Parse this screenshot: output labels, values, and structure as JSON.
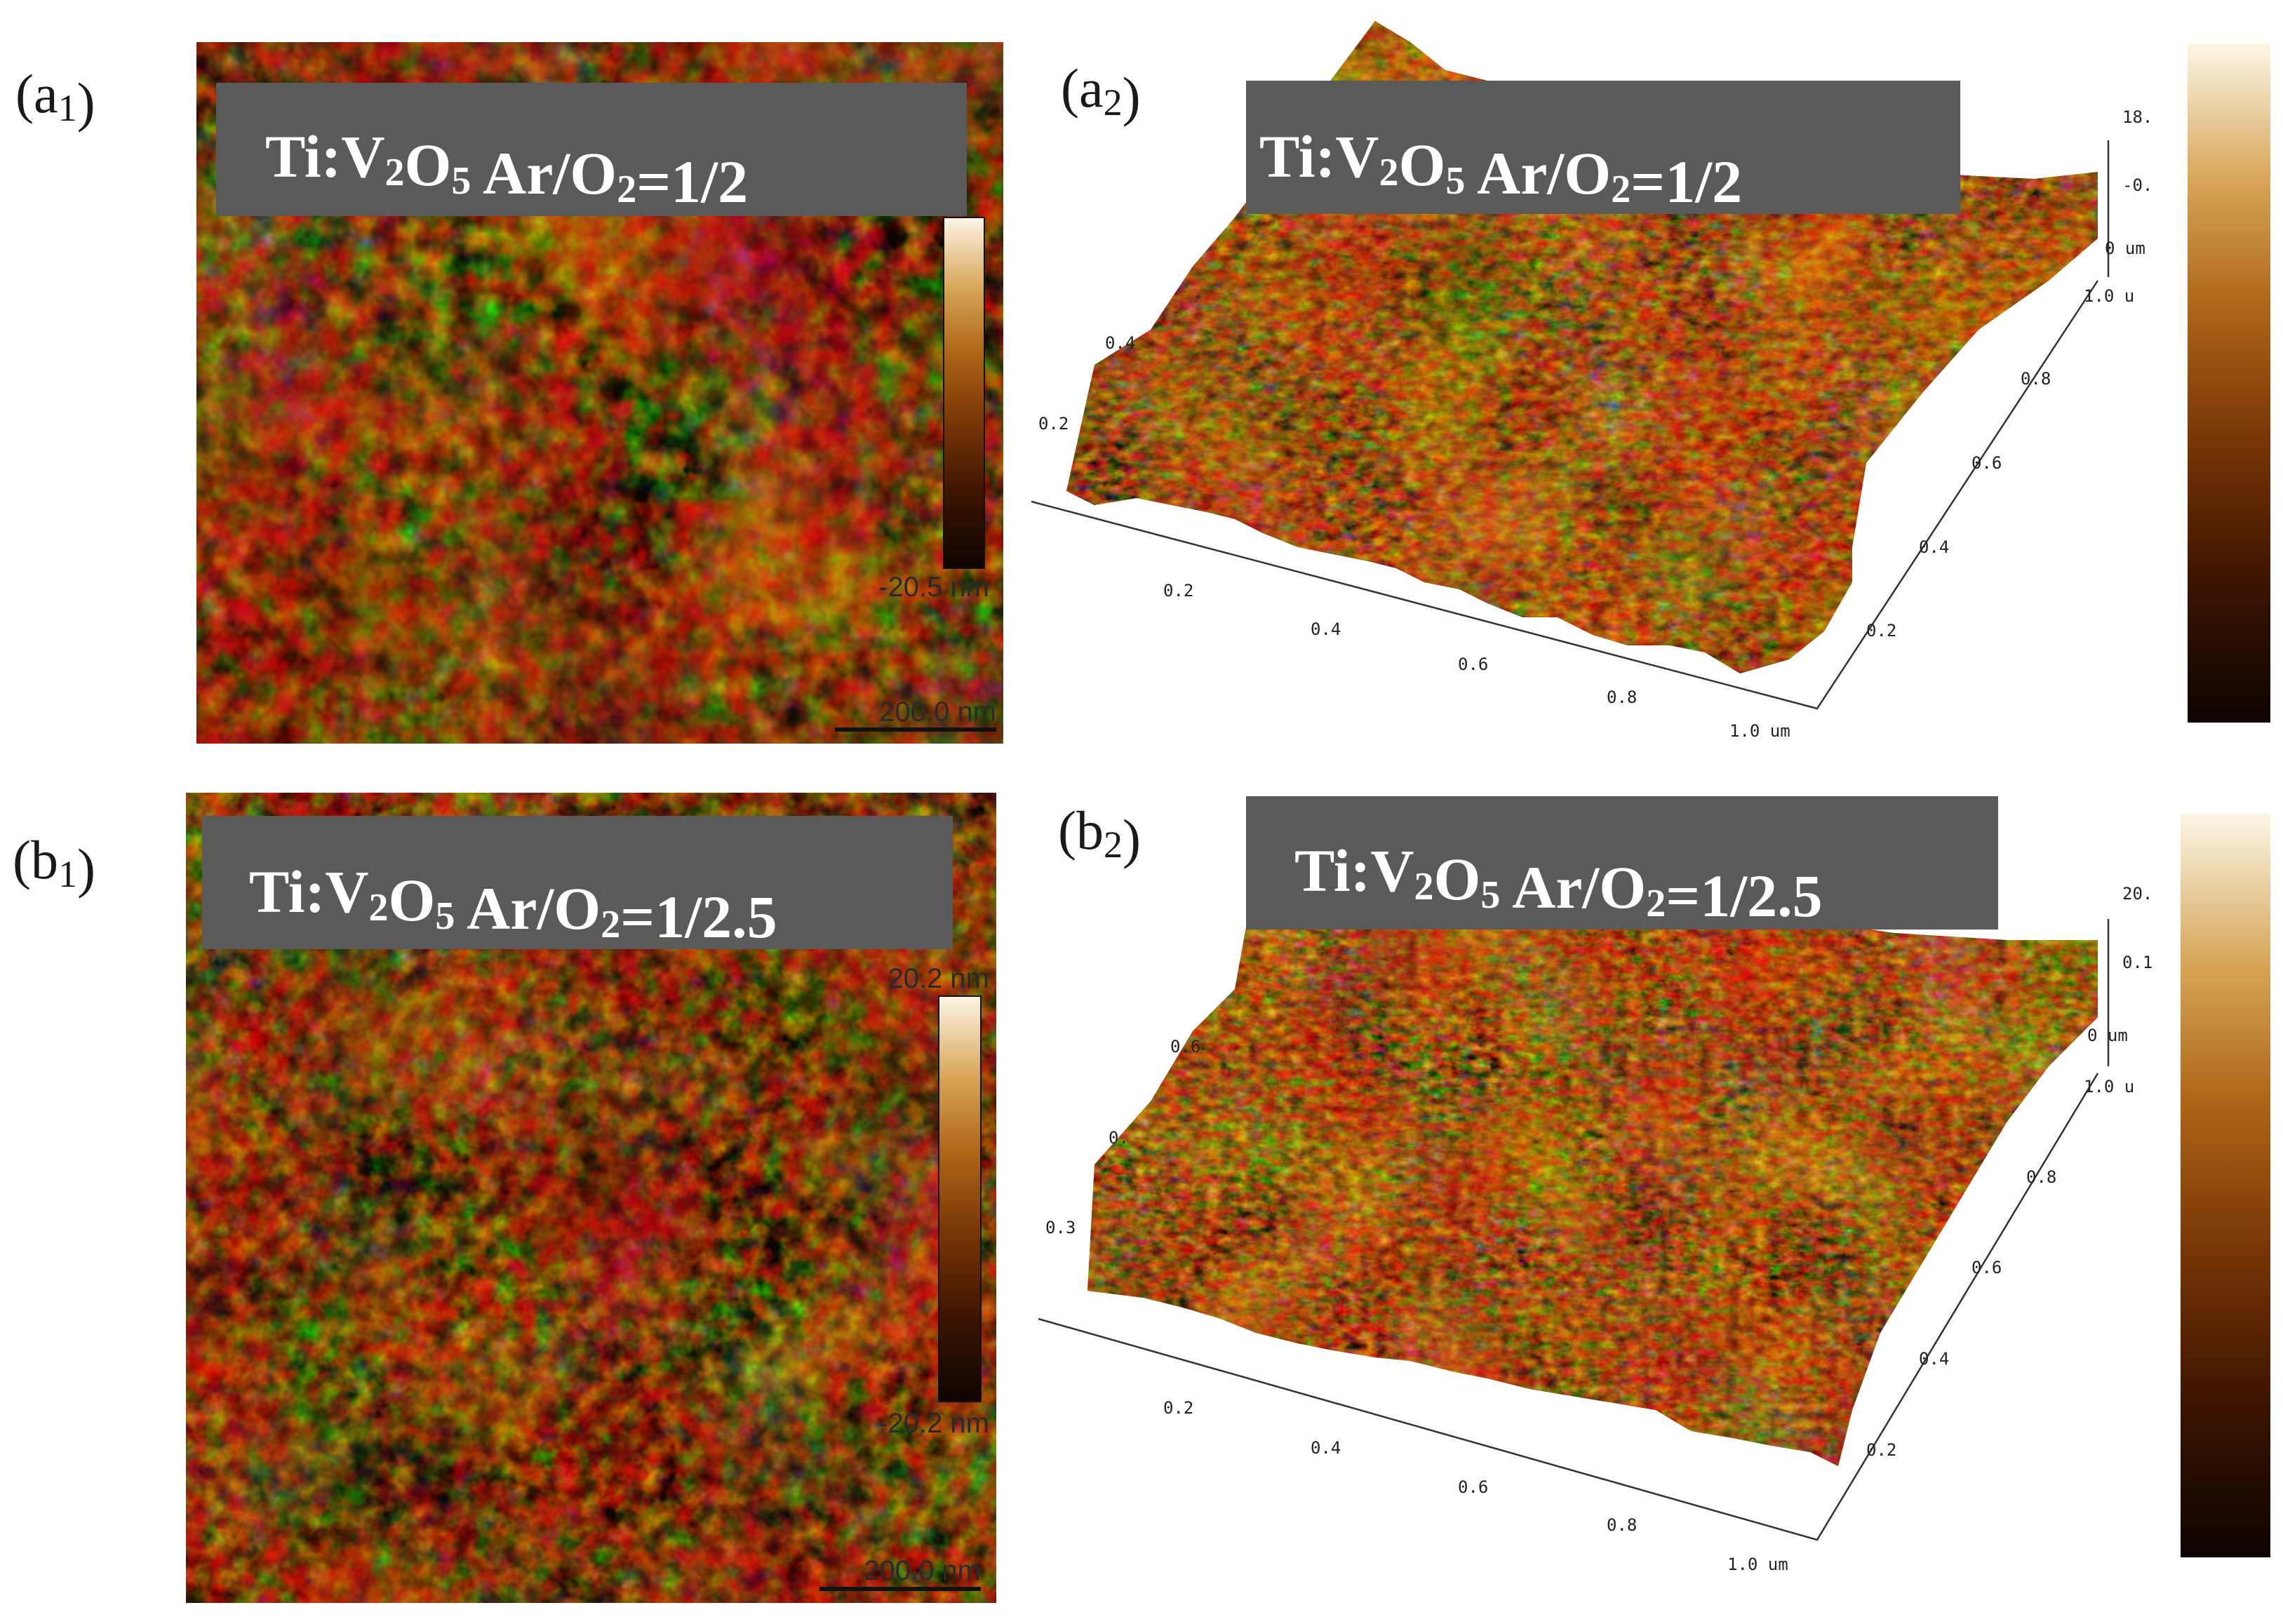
{
  "colors": {
    "afm_palette": [
      "#120600",
      "#3d1500",
      "#6e2d05",
      "#a2560f",
      "#c88a32",
      "#e6c589",
      "#fbf1dc"
    ],
    "banner_bg": "#5a5a5a",
    "banner_text": "#ffffff"
  },
  "panels": [
    {
      "label": "(a1)",
      "kind": "2d",
      "banner": "Ti:V2O5 Ar/O2=1/2",
      "scale_min": "-20.5 nm",
      "scale_max": "",
      "scale_bar": "200.0 nm"
    },
    {
      "label": "(a2)",
      "kind": "3d",
      "banner": "Ti:V2O5 Ar/O2=1/2",
      "z_ticks": [
        "18.",
        "-0.",
        "0 um"
      ],
      "y_ticks": [
        "1.0 u",
        "0.8",
        "0.6",
        "0.4",
        "0.2"
      ],
      "x_ticks": [
        "0.2",
        "0.4",
        "0.6",
        "0.8",
        "1.0 um"
      ],
      "left_ticks": [
        "0.4",
        "0.2"
      ]
    },
    {
      "label": "(b1)",
      "kind": "2d",
      "banner": "Ti:V2O5 Ar/O2=1/2.5",
      "scale_min": "-20.2 nm",
      "scale_max": "20.2 nm",
      "scale_bar": "200.0 nm"
    },
    {
      "label": "(b2)",
      "kind": "3d",
      "banner": "Ti:V2O5 Ar/O2=1/2.5",
      "z_ticks": [
        "20.",
        "0.1",
        "0 um"
      ],
      "y_ticks": [
        "1.0 u",
        "0.8",
        "0.6",
        "0.4",
        "0.2"
      ],
      "x_ticks": [
        "0.2",
        "0.4",
        "0.6",
        "0.8",
        "1.0 um"
      ],
      "left_ticks": [
        "0.6",
        "0.",
        "0.3"
      ]
    }
  ]
}
